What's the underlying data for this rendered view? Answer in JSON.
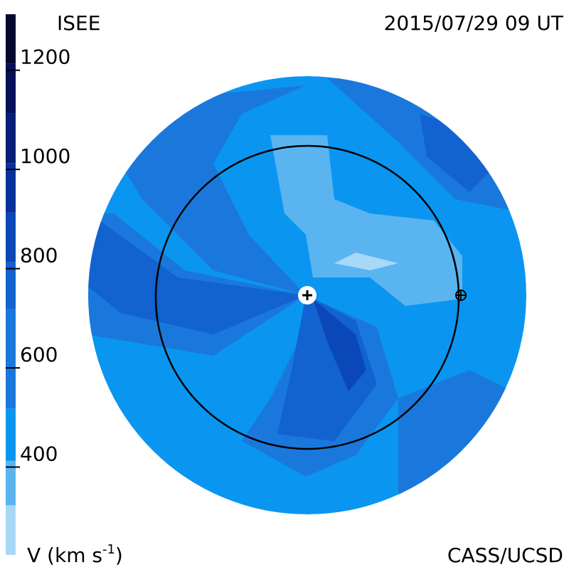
{
  "header": {
    "title": "ISEE",
    "timestamp": "2015/07/29 09 UT",
    "credit": "CASS/UCSD"
  },
  "colorbar": {
    "label": {
      "text": "V (km s",
      "sup": "-1",
      "close": ")"
    },
    "lim": [
      210,
      1300
    ],
    "ticks": [
      400,
      600,
      800,
      1000,
      1200
    ],
    "bands": [
      {
        "from": 210,
        "to": 310,
        "color": "#a8d8f8"
      },
      {
        "from": 310,
        "to": 400,
        "color": "#5ab4f0"
      },
      {
        "from": 400,
        "to": 505,
        "color": "#0a96f0"
      },
      {
        "from": 505,
        "to": 705,
        "color": "#1a78dc"
      },
      {
        "from": 705,
        "to": 800,
        "color": "#1262d0"
      },
      {
        "from": 800,
        "to": 900,
        "color": "#0a48b8"
      },
      {
        "from": 900,
        "to": 1000,
        "color": "#08309a"
      },
      {
        "from": 1000,
        "to": 1100,
        "color": "#061e78"
      },
      {
        "from": 1100,
        "to": 1200,
        "color": "#041058"
      },
      {
        "from": 1200,
        "to": 1300,
        "color": "#020a30"
      }
    ]
  }
}
